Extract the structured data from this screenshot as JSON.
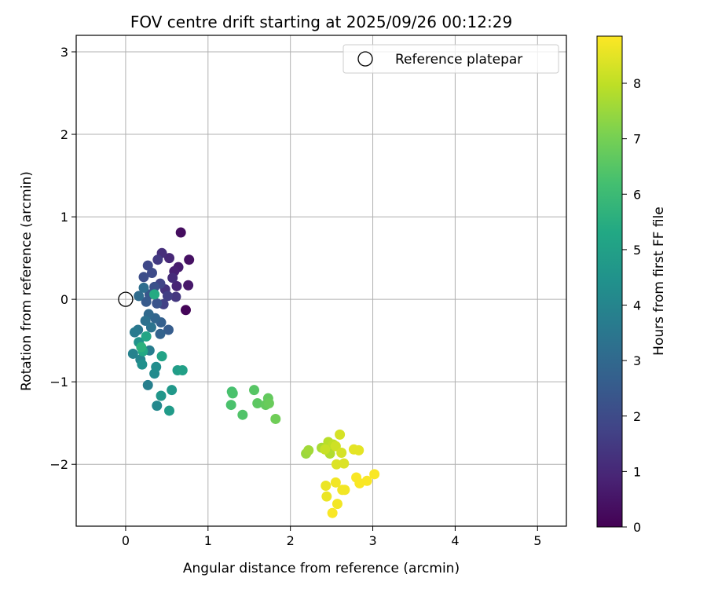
{
  "chart_data": {
    "type": "scatter",
    "title": "FOV centre drift starting at 2025/09/26 00:12:29",
    "xlabel": "Angular distance from reference (arcmin)",
    "ylabel": "Rotation from reference (arcmin)",
    "xlim": [
      -0.6,
      5.35
    ],
    "ylim": [
      -2.75,
      3.2
    ],
    "x_ticks": [
      0,
      1,
      2,
      3,
      4,
      5
    ],
    "y_ticks": [
      -2,
      -1,
      0,
      1,
      2,
      3
    ],
    "grid": true,
    "legend": {
      "placement": "top-right",
      "entries": [
        "Reference platepar"
      ]
    },
    "reference": {
      "name": "Reference platepar",
      "x": 0,
      "y": 0
    },
    "colorbar": {
      "label": "Hours from first FF file",
      "colormap": "viridis",
      "range": [
        0,
        8.85
      ],
      "ticks": [
        0,
        1,
        2,
        3,
        4,
        5,
        6,
        7,
        8
      ]
    },
    "points": [
      {
        "x": 0.73,
        "y": -0.13,
        "h": 0.1
      },
      {
        "x": 0.67,
        "y": 0.81,
        "h": 0.3
      },
      {
        "x": 0.77,
        "y": 0.48,
        "h": 0.4
      },
      {
        "x": 0.76,
        "y": 0.17,
        "h": 0.6
      },
      {
        "x": 0.64,
        "y": 0.39,
        "h": 0.7
      },
      {
        "x": 0.59,
        "y": 0.34,
        "h": 0.8
      },
      {
        "x": 0.62,
        "y": 0.16,
        "h": 0.9
      },
      {
        "x": 0.53,
        "y": 0.5,
        "h": 1.0
      },
      {
        "x": 0.57,
        "y": 0.26,
        "h": 1.1
      },
      {
        "x": 0.44,
        "y": 0.56,
        "h": 1.2
      },
      {
        "x": 0.48,
        "y": 0.12,
        "h": 1.3
      },
      {
        "x": 0.61,
        "y": 0.03,
        "h": 1.4
      },
      {
        "x": 0.39,
        "y": 0.48,
        "h": 1.5
      },
      {
        "x": 0.51,
        "y": 0.04,
        "h": 1.6
      },
      {
        "x": 0.46,
        "y": -0.06,
        "h": 1.7
      },
      {
        "x": 0.42,
        "y": 0.19,
        "h": 1.8
      },
      {
        "x": 0.27,
        "y": 0.41,
        "h": 1.9
      },
      {
        "x": 0.32,
        "y": 0.32,
        "h": 2.0
      },
      {
        "x": 0.22,
        "y": 0.27,
        "h": 2.1
      },
      {
        "x": 0.35,
        "y": 0.15,
        "h": 2.2
      },
      {
        "x": 0.38,
        "y": -0.05,
        "h": 2.3
      },
      {
        "x": 0.29,
        "y": 0.06,
        "h": 2.4
      },
      {
        "x": 0.25,
        "y": -0.03,
        "h": 2.5
      },
      {
        "x": 0.52,
        "y": -0.37,
        "h": 2.6
      },
      {
        "x": 0.43,
        "y": -0.28,
        "h": 2.7
      },
      {
        "x": 0.42,
        "y": -0.42,
        "h": 2.8
      },
      {
        "x": 0.36,
        "y": -0.23,
        "h": 2.9
      },
      {
        "x": 0.28,
        "y": -0.18,
        "h": 3.0
      },
      {
        "x": 0.16,
        "y": 0.04,
        "h": 3.1
      },
      {
        "x": 0.22,
        "y": 0.14,
        "h": 3.2
      },
      {
        "x": 0.24,
        "y": -0.26,
        "h": 3.3
      },
      {
        "x": 0.31,
        "y": -0.34,
        "h": 3.4
      },
      {
        "x": 0.15,
        "y": -0.37,
        "h": 3.5
      },
      {
        "x": 0.11,
        "y": -0.4,
        "h": 3.6
      },
      {
        "x": 0.29,
        "y": -0.62,
        "h": 3.7
      },
      {
        "x": 0.27,
        "y": -1.04,
        "h": 3.8
      },
      {
        "x": 0.09,
        "y": -0.66,
        "h": 3.9
      },
      {
        "x": 0.18,
        "y": -0.73,
        "h": 4.0
      },
      {
        "x": 0.38,
        "y": -1.29,
        "h": 4.1
      },
      {
        "x": 0.35,
        "y": -0.9,
        "h": 4.2
      },
      {
        "x": 0.37,
        "y": -0.82,
        "h": 4.3
      },
      {
        "x": 0.2,
        "y": -0.79,
        "h": 4.4
      },
      {
        "x": 0.16,
        "y": -0.52,
        "h": 4.5
      },
      {
        "x": 0.43,
        "y": -1.17,
        "h": 4.6
      },
      {
        "x": 0.56,
        "y": -1.1,
        "h": 4.7
      },
      {
        "x": 0.53,
        "y": -1.35,
        "h": 4.8
      },
      {
        "x": 0.63,
        "y": -0.86,
        "h": 4.9
      },
      {
        "x": 0.69,
        "y": -0.86,
        "h": 5.0
      },
      {
        "x": 0.44,
        "y": -0.69,
        "h": 5.1
      },
      {
        "x": 0.25,
        "y": -0.45,
        "h": 5.2
      },
      {
        "x": 0.21,
        "y": -0.63,
        "h": 5.3
      },
      {
        "x": 0.35,
        "y": 0.06,
        "h": 5.4
      },
      {
        "x": 0.19,
        "y": -0.58,
        "h": 5.6
      },
      {
        "x": 1.29,
        "y": -1.12,
        "h": 6.2
      },
      {
        "x": 1.3,
        "y": -1.14,
        "h": 6.3
      },
      {
        "x": 1.28,
        "y": -1.28,
        "h": 6.3
      },
      {
        "x": 1.42,
        "y": -1.4,
        "h": 6.4
      },
      {
        "x": 1.56,
        "y": -1.1,
        "h": 6.5
      },
      {
        "x": 1.6,
        "y": -1.26,
        "h": 6.6
      },
      {
        "x": 1.73,
        "y": -1.2,
        "h": 6.7
      },
      {
        "x": 1.7,
        "y": -1.28,
        "h": 6.7
      },
      {
        "x": 1.74,
        "y": -1.26,
        "h": 6.8
      },
      {
        "x": 1.82,
        "y": -1.45,
        "h": 6.9
      },
      {
        "x": 2.19,
        "y": -1.87,
        "h": 7.5
      },
      {
        "x": 2.22,
        "y": -1.83,
        "h": 7.6
      },
      {
        "x": 2.38,
        "y": -1.8,
        "h": 7.7
      },
      {
        "x": 2.48,
        "y": -1.87,
        "h": 7.8
      },
      {
        "x": 2.46,
        "y": -1.73,
        "h": 7.9
      },
      {
        "x": 2.52,
        "y": -1.76,
        "h": 8.0
      },
      {
        "x": 2.42,
        "y": -1.82,
        "h": 8.1
      },
      {
        "x": 2.55,
        "y": -1.78,
        "h": 8.2
      },
      {
        "x": 2.6,
        "y": -1.64,
        "h": 8.3
      },
      {
        "x": 2.62,
        "y": -1.86,
        "h": 8.3
      },
      {
        "x": 2.56,
        "y": -2.0,
        "h": 8.4
      },
      {
        "x": 2.65,
        "y": -1.99,
        "h": 8.4
      },
      {
        "x": 2.77,
        "y": -1.82,
        "h": 8.5
      },
      {
        "x": 2.83,
        "y": -1.83,
        "h": 8.5
      },
      {
        "x": 2.43,
        "y": -2.26,
        "h": 8.6
      },
      {
        "x": 2.44,
        "y": -2.39,
        "h": 8.6
      },
      {
        "x": 2.55,
        "y": -2.22,
        "h": 8.7
      },
      {
        "x": 2.63,
        "y": -2.31,
        "h": 8.7
      },
      {
        "x": 2.66,
        "y": -2.31,
        "h": 8.7
      },
      {
        "x": 2.57,
        "y": -2.48,
        "h": 8.7
      },
      {
        "x": 2.51,
        "y": -2.59,
        "h": 8.8
      },
      {
        "x": 2.8,
        "y": -2.16,
        "h": 8.8
      },
      {
        "x": 2.84,
        "y": -2.23,
        "h": 8.8
      },
      {
        "x": 2.93,
        "y": -2.2,
        "h": 8.8
      },
      {
        "x": 3.02,
        "y": -2.12,
        "h": 8.8
      }
    ]
  }
}
